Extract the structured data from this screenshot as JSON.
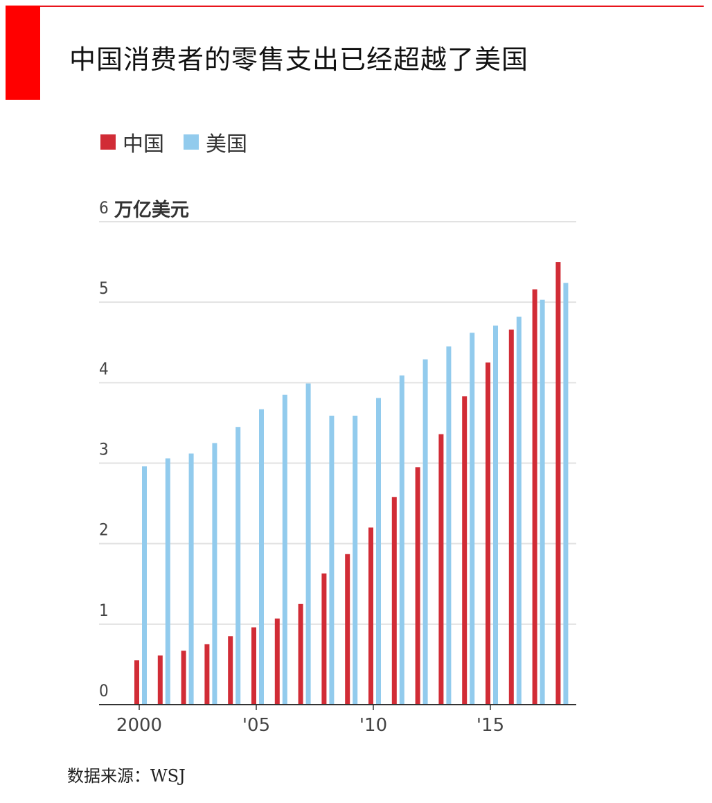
{
  "title": "中国消费者的零售支出已经超越了美国",
  "source": "数据来源：WSJ",
  "chart_data": {
    "type": "bar",
    "title": "中国消费者的零售支出已经超越了美国",
    "ylabel": "万亿美元",
    "xlabel": "",
    "ylim": [
      0,
      6
    ],
    "yticks": [
      "0",
      "1",
      "2",
      "3",
      "4",
      "5",
      "6"
    ],
    "xtick_labels": [
      {
        "year": 2000,
        "label": "2000"
      },
      {
        "year": 2005,
        "label": "'05"
      },
      {
        "year": 2010,
        "label": "'10"
      },
      {
        "year": 2015,
        "label": "'15"
      }
    ],
    "grid": true,
    "legend": "top-left",
    "categories": [
      2000,
      2001,
      2002,
      2003,
      2004,
      2005,
      2006,
      2007,
      2008,
      2009,
      2010,
      2011,
      2012,
      2013,
      2014,
      2015,
      2016,
      2017,
      2018
    ],
    "series": [
      {
        "name": "中国",
        "color": "#d12c36",
        "values": [
          0.55,
          0.61,
          0.67,
          0.75,
          0.85,
          0.96,
          1.07,
          1.25,
          1.63,
          1.87,
          2.2,
          2.58,
          2.95,
          3.36,
          3.83,
          4.25,
          4.66,
          5.16,
          5.5
        ]
      },
      {
        "name": "美国",
        "color": "#92cbed",
        "values": [
          2.96,
          3.06,
          3.12,
          3.25,
          3.45,
          3.67,
          3.85,
          3.99,
          3.59,
          3.59,
          3.81,
          4.09,
          4.29,
          4.45,
          4.62,
          4.71,
          4.82,
          5.03,
          5.24
        ]
      }
    ]
  }
}
